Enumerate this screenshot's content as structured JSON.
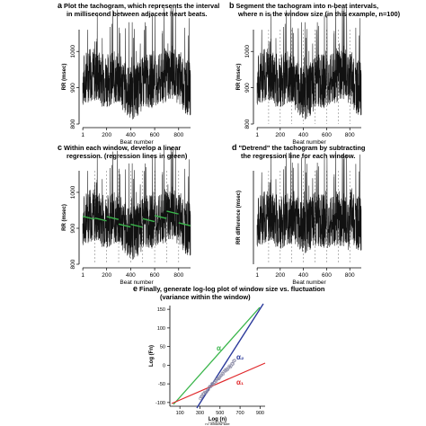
{
  "panels": [
    {
      "id": "a",
      "letter": "a",
      "caption_lines": [
        "Plot the tachogram, which represents the interval",
        "in millisecond between adjacent heart beats."
      ],
      "xlabel": "Beat number",
      "ylabel": "RR (msec)",
      "x_ticks": [
        "1",
        "200",
        "400",
        "600",
        "800"
      ],
      "y_ticks": [
        "1000",
        "900",
        "800"
      ],
      "dashed_lines": false,
      "regression": false,
      "detrended": false
    },
    {
      "id": "b",
      "letter": "b",
      "caption_lines": [
        "Segment the tachogram into n-beat intervals,",
        "where n is the window size (in this example, n=100)"
      ],
      "xlabel": "Beat number",
      "ylabel": "RR (msec)",
      "x_ticks": [
        "1",
        "200",
        "400",
        "600",
        "800"
      ],
      "y_ticks": [
        "1000",
        "900",
        "800"
      ],
      "dashed_lines": true,
      "regression": false,
      "detrended": false
    },
    {
      "id": "c",
      "letter": "c",
      "caption_lines": [
        "Within each window, develop a linear",
        "regression. (regression lines in green)"
      ],
      "xlabel": "Beat number",
      "ylabel": "RR (msec)",
      "x_ticks": [
        "1",
        "200",
        "400",
        "600",
        "800"
      ],
      "y_ticks": [
        "1000",
        "900",
        "800"
      ],
      "dashed_lines": true,
      "regression": true,
      "detrended": false
    },
    {
      "id": "d",
      "letter": "d",
      "caption_lines": [
        "\"Detrend\" the tachogram by subtracting",
        "the regression line for each window."
      ],
      "xlabel": "Beat number",
      "ylabel": "RR difference (msec)",
      "x_ticks": [
        "1",
        "200",
        "400",
        "600",
        "800"
      ],
      "y_ticks": [],
      "dashed_lines": true,
      "regression": false,
      "detrended": true
    }
  ],
  "panel_e": {
    "letter": "e",
    "caption_lines": [
      "Finally, generate log-log plot of window size vs. fluctuation",
      "(variance within the window)"
    ],
    "xlabel": "Log (n)",
    "xlabel_sub": "n= window size",
    "ylabel": "Log (Fn)",
    "x_ticks": [
      "100",
      "300",
      "500",
      "700",
      "900"
    ],
    "y_ticks": [
      "150",
      "100",
      "50",
      "0",
      "-50",
      "-100"
    ],
    "labels": {
      "alpha": "α",
      "alpha2": "α₂",
      "alpha1": "α₁"
    },
    "footnote": "Lorem ipsum"
  },
  "colors": {
    "signal": "#111111",
    "regression": "#39b54a",
    "alpha": "#39b54a",
    "alpha2": "#2b3a9b",
    "alpha1": "#e0282b",
    "points": "#8c8ca6",
    "dashed": "#888888"
  }
}
